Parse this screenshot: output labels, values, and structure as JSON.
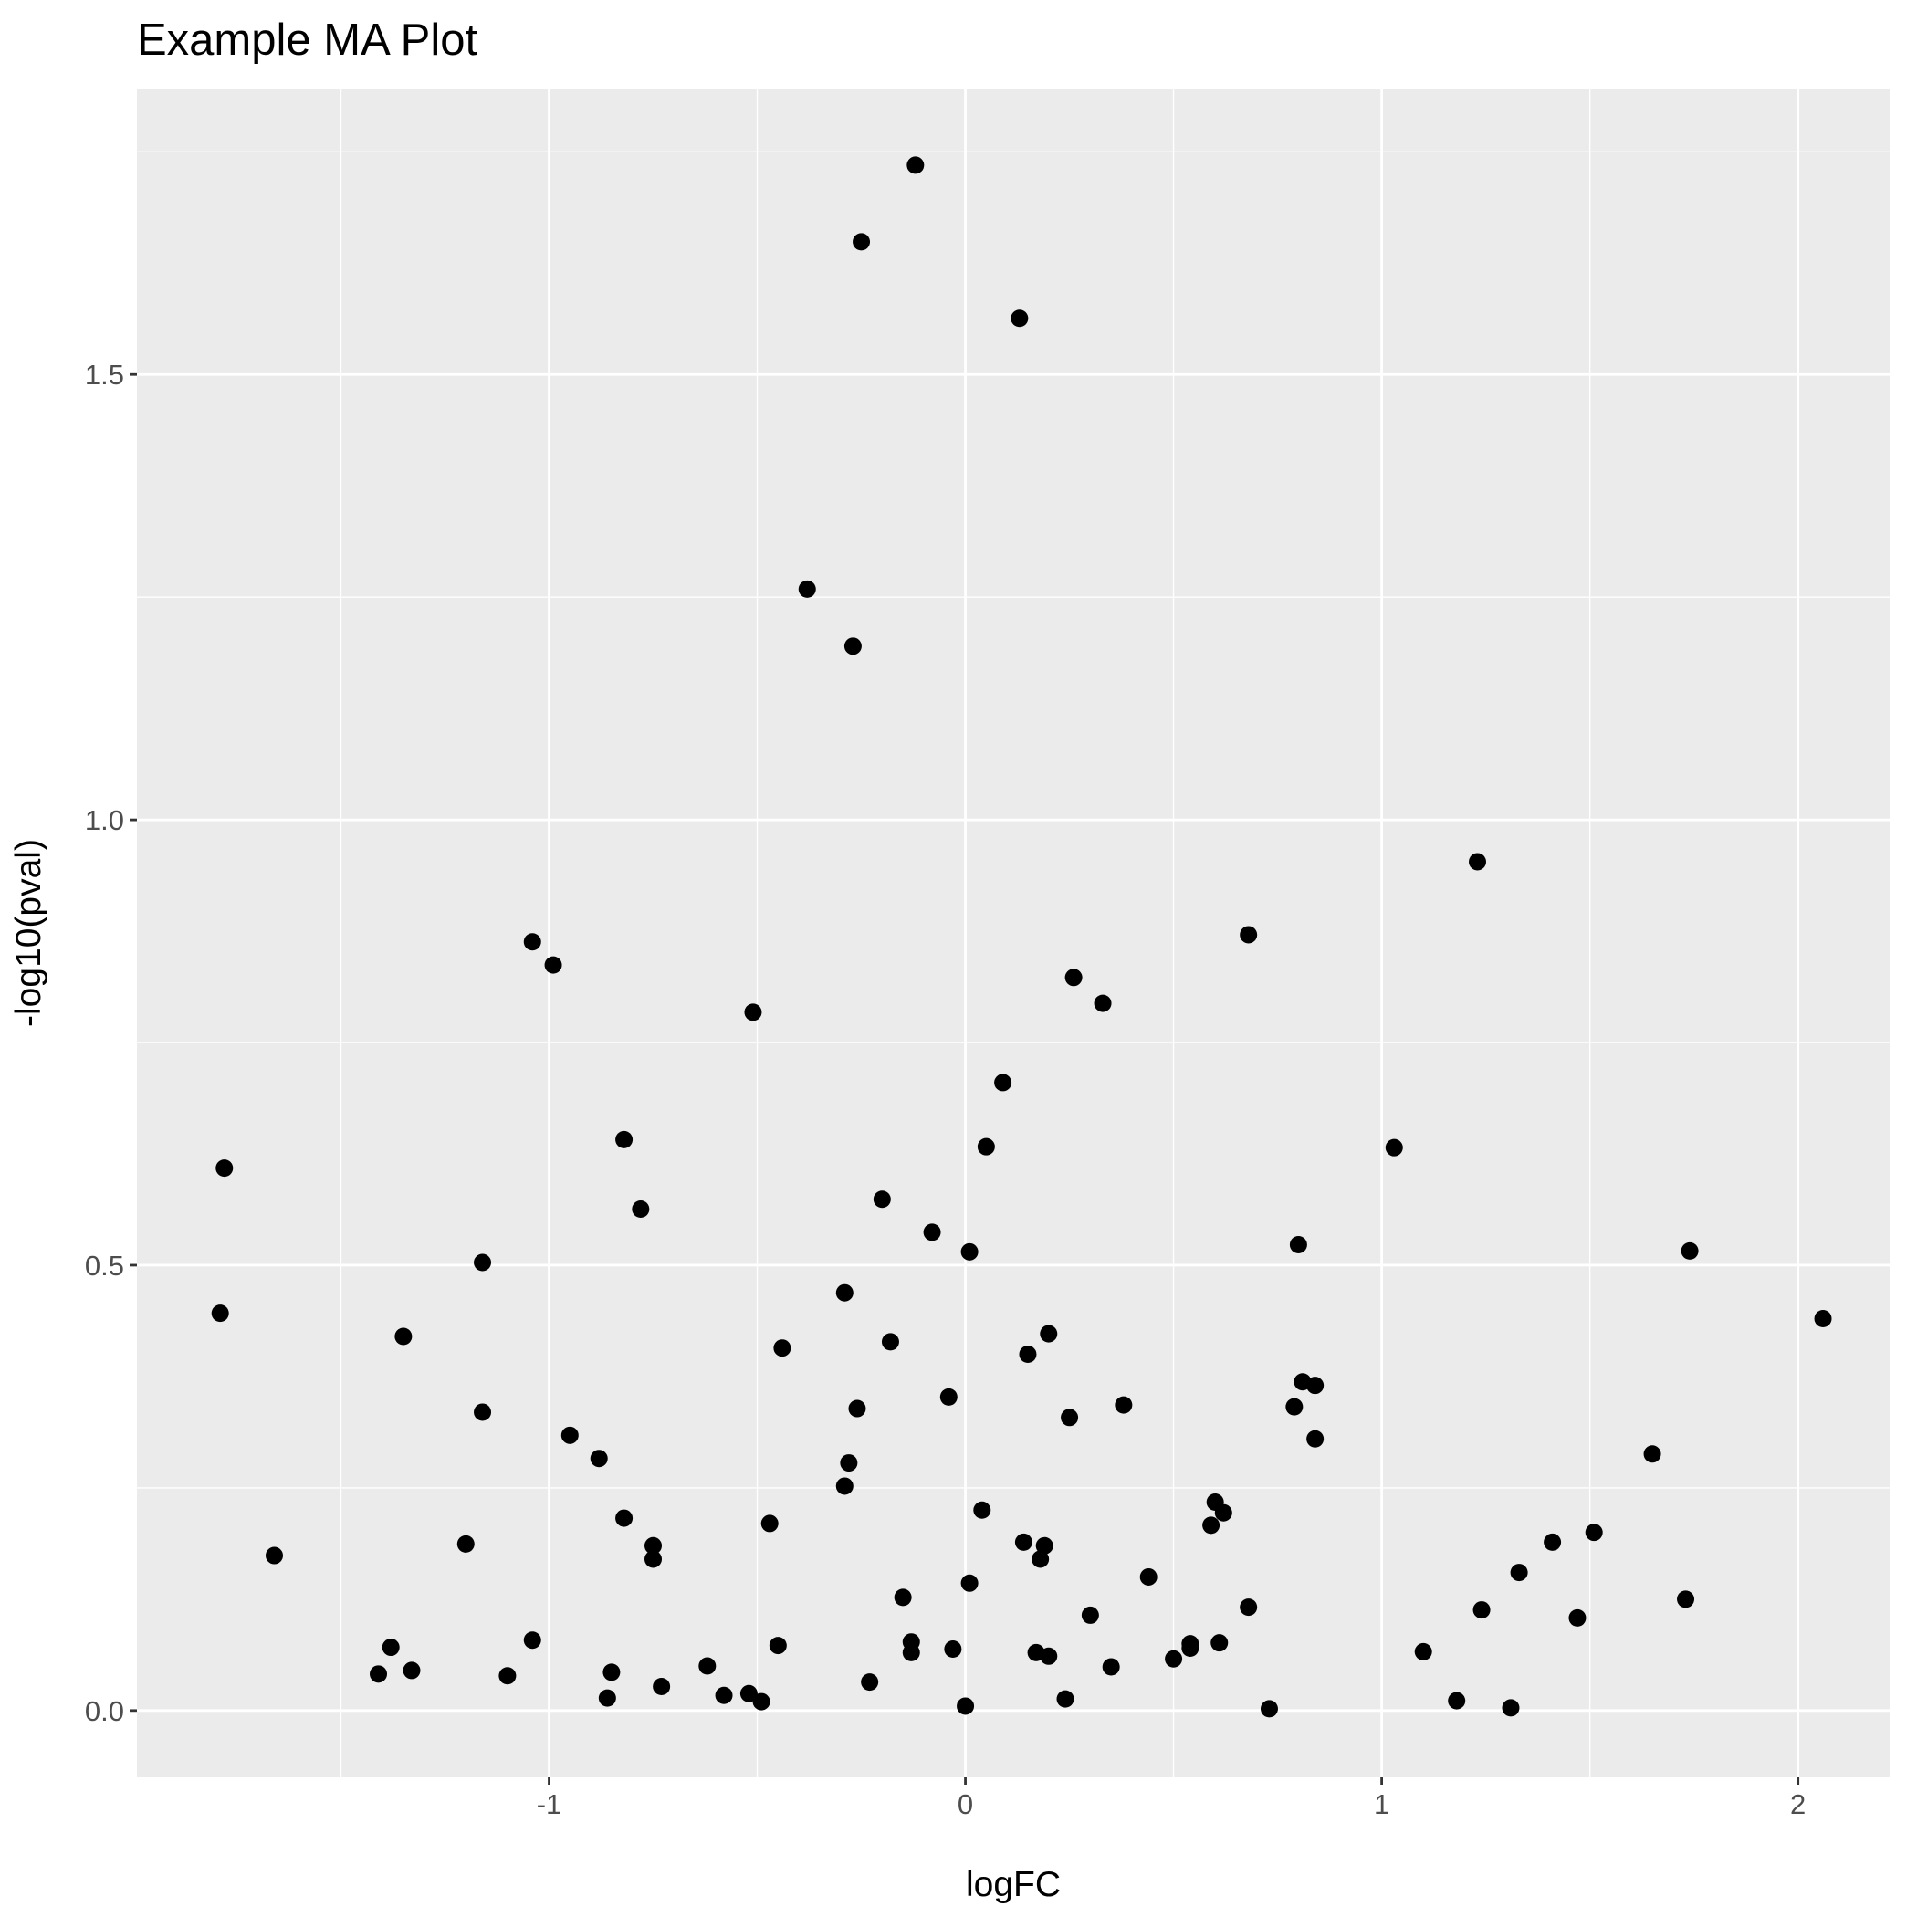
{
  "chart_data": {
    "type": "scatter",
    "title": "Example MA Plot",
    "xlabel": "logFC",
    "ylabel": "-log10(pval)",
    "xlim": [
      -1.99,
      2.22
    ],
    "ylim": [
      -0.075,
      1.82
    ],
    "x_ticks": [
      -1,
      0,
      1,
      2
    ],
    "y_ticks": [
      0.0,
      0.5,
      1.0,
      1.5
    ],
    "x_tick_labels": [
      "-1",
      "0",
      "1",
      "2"
    ],
    "y_tick_labels": [
      "0.0",
      "0.5",
      "1.0",
      "1.5"
    ],
    "grid": true,
    "point_color": "#000000",
    "panel_color": "#ebebeb",
    "points": [
      [
        -0.12,
        1.735
      ],
      [
        -0.25,
        1.649
      ],
      [
        0.13,
        1.563
      ],
      [
        -0.38,
        1.259
      ],
      [
        -0.27,
        1.195
      ],
      [
        1.23,
        0.953
      ],
      [
        0.68,
        0.871
      ],
      [
        -1.04,
        0.863
      ],
      [
        -0.99,
        0.837
      ],
      [
        0.26,
        0.823
      ],
      [
        0.33,
        0.794
      ],
      [
        -0.51,
        0.784
      ],
      [
        0.09,
        0.705
      ],
      [
        -0.82,
        0.641
      ],
      [
        0.05,
        0.633
      ],
      [
        1.03,
        0.632
      ],
      [
        -1.78,
        0.609
      ],
      [
        -0.2,
        0.574
      ],
      [
        -0.78,
        0.563
      ],
      [
        -0.08,
        0.537
      ],
      [
        0.8,
        0.523
      ],
      [
        0.01,
        0.515
      ],
      [
        1.74,
        0.516
      ],
      [
        -1.16,
        0.503
      ],
      [
        -0.29,
        0.469
      ],
      [
        -1.79,
        0.446
      ],
      [
        2.06,
        0.44
      ],
      [
        0.2,
        0.423
      ],
      [
        -1.35,
        0.42
      ],
      [
        -0.18,
        0.414
      ],
      [
        -0.44,
        0.407
      ],
      [
        0.15,
        0.4
      ],
      [
        0.81,
        0.369
      ],
      [
        0.84,
        0.365
      ],
      [
        -0.04,
        0.352
      ],
      [
        0.38,
        0.343
      ],
      [
        0.79,
        0.341
      ],
      [
        -0.26,
        0.339
      ],
      [
        -1.16,
        0.335
      ],
      [
        0.25,
        0.329
      ],
      [
        -0.95,
        0.309
      ],
      [
        0.84,
        0.305
      ],
      [
        1.65,
        0.288
      ],
      [
        -0.88,
        0.283
      ],
      [
        -0.28,
        0.278
      ],
      [
        -0.29,
        0.252
      ],
      [
        0.6,
        0.234
      ],
      [
        0.04,
        0.225
      ],
      [
        0.62,
        0.222
      ],
      [
        -0.82,
        0.216
      ],
      [
        -0.47,
        0.21
      ],
      [
        0.59,
        0.208
      ],
      [
        1.51,
        0.2
      ],
      [
        -1.2,
        0.187
      ],
      [
        1.41,
        0.189
      ],
      [
        0.14,
        0.189
      ],
      [
        -0.75,
        0.185
      ],
      [
        0.19,
        0.185
      ],
      [
        -1.66,
        0.174
      ],
      [
        -0.75,
        0.17
      ],
      [
        0.18,
        0.17
      ],
      [
        1.33,
        0.155
      ],
      [
        0.44,
        0.15
      ],
      [
        0.01,
        0.143
      ],
      [
        1.73,
        0.125
      ],
      [
        -0.15,
        0.127
      ],
      [
        0.68,
        0.116
      ],
      [
        1.24,
        0.113
      ],
      [
        0.3,
        0.107
      ],
      [
        1.47,
        0.104
      ],
      [
        -1.04,
        0.079
      ],
      [
        -0.13,
        0.077
      ],
      [
        0.61,
        0.076
      ],
      [
        0.54,
        0.075
      ],
      [
        -1.38,
        0.071
      ],
      [
        -0.45,
        0.073
      ],
      [
        -0.03,
        0.069
      ],
      [
        0.54,
        0.07
      ],
      [
        1.1,
        0.066
      ],
      [
        0.17,
        0.065
      ],
      [
        -0.13,
        0.065
      ],
      [
        0.2,
        0.061
      ],
      [
        0.5,
        0.058
      ],
      [
        -0.62,
        0.05
      ],
      [
        0.35,
        0.049
      ],
      [
        -1.33,
        0.045
      ],
      [
        -0.85,
        0.043
      ],
      [
        -1.41,
        0.041
      ],
      [
        -1.1,
        0.039
      ],
      [
        -0.23,
        0.032
      ],
      [
        -0.73,
        0.027
      ],
      [
        -0.52,
        0.019
      ],
      [
        -0.58,
        0.017
      ],
      [
        -0.86,
        0.014
      ],
      [
        0.24,
        0.013
      ],
      [
        1.18,
        0.011
      ],
      [
        -0.49,
        0.01
      ],
      [
        0.0,
        0.005
      ],
      [
        1.31,
        0.003
      ],
      [
        0.73,
        0.002
      ]
    ]
  }
}
